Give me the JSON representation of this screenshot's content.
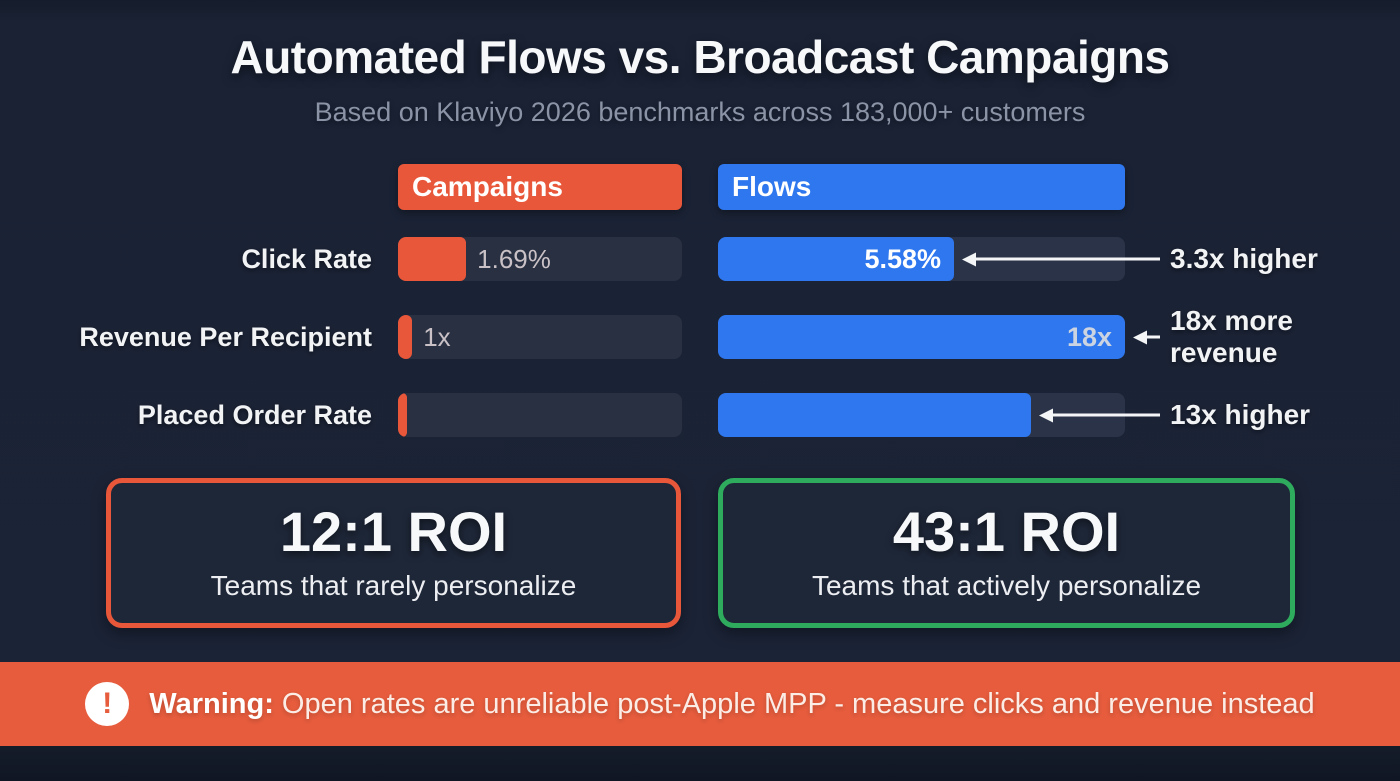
{
  "page": {
    "title": "Automated Flows vs. Broadcast Campaigns",
    "subtitle": "Based on Klaviyo 2026 benchmarks across 183,000+ customers"
  },
  "colors": {
    "campaigns": "#e8573a",
    "flows": "#2e77ee",
    "roi_left_border": "#e8573a",
    "roi_right_border": "#2fab5e",
    "warning_bg": "#e65c3d",
    "background": "#1b2336"
  },
  "columns": {
    "campaigns_label": "Campaigns",
    "flows_label": "Flows"
  },
  "rows": [
    {
      "label": "Click Rate",
      "campaign_value": "1.69%",
      "campaign_fill_pct": 24,
      "flow_value": "5.58%",
      "flow_fill_pct": 58,
      "annotation": "3.3x higher"
    },
    {
      "label": "Revenue Per Recipient",
      "campaign_value": "1x",
      "campaign_fill_pct": 5,
      "flow_value": "18x",
      "flow_fill_pct": 100,
      "annotation": "18x more revenue"
    },
    {
      "label": "Placed Order Rate",
      "campaign_value": "",
      "campaign_fill_pct": 3,
      "flow_value": "",
      "flow_fill_pct": 77,
      "annotation": "13x higher"
    }
  ],
  "roi_cards": [
    {
      "value": "12:1 ROI",
      "caption": "Teams that rarely personalize"
    },
    {
      "value": "43:1 ROI",
      "caption": "Teams that actively personalize"
    }
  ],
  "warning": {
    "icon": "exclamation-icon",
    "prefix": "Warning:",
    "message": " Open rates are unreliable post-Apple MPP - measure clicks and revenue instead"
  },
  "chart_data": {
    "type": "bar",
    "orientation": "horizontal",
    "title": "Automated Flows vs. Broadcast Campaigns",
    "subtitle": "Based on Klaviyo 2026 benchmarks across 183,000+ customers",
    "categories": [
      "Click Rate",
      "Revenue Per Recipient",
      "Placed Order Rate"
    ],
    "series": [
      {
        "name": "Campaigns",
        "color": "#e8573a",
        "values": [
          1.69,
          1,
          null
        ],
        "value_labels": [
          "1.69%",
          "1x",
          ""
        ],
        "fill_pct_of_track": [
          24,
          5,
          3
        ]
      },
      {
        "name": "Flows",
        "color": "#2e77ee",
        "values": [
          5.58,
          18,
          null
        ],
        "value_labels": [
          "5.58%",
          "18x",
          ""
        ],
        "fill_pct_of_track": [
          58,
          100,
          77
        ]
      }
    ],
    "comparison_annotations": [
      "3.3x higher",
      "18x more revenue",
      "13x higher"
    ],
    "roi": [
      {
        "group": "Teams that rarely personalize",
        "roi": "12:1"
      },
      {
        "group": "Teams that actively personalize",
        "roi": "43:1"
      }
    ],
    "legend_position": "top",
    "grid": false,
    "note": "Warning: Open rates are unreliable post-Apple MPP - measure clicks and revenue instead"
  }
}
